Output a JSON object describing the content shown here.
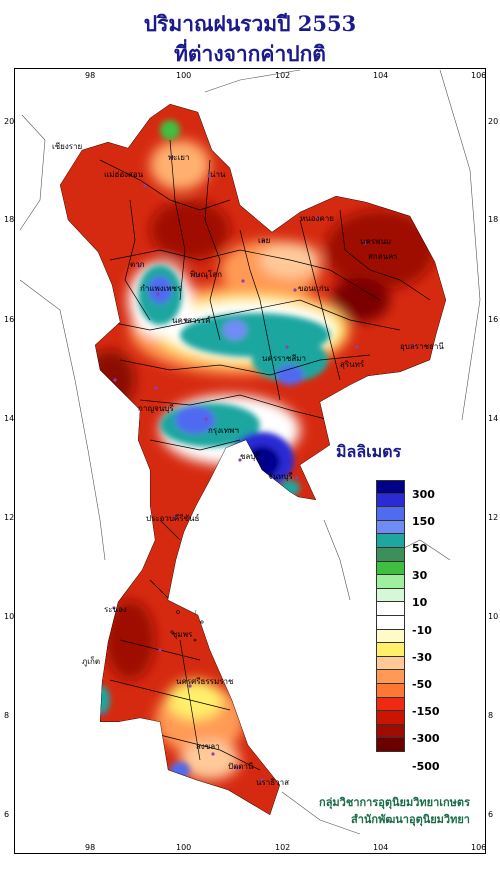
{
  "title_line1": "ปริมาณฝนรวมปี 2553",
  "title_line2": "ที่ต่างจากค่าปกติ",
  "axes": {
    "lon_ticks": [
      "98",
      "100",
      "102",
      "104",
      "106"
    ],
    "lat_ticks": [
      "20",
      "18",
      "16",
      "14",
      "12",
      "10",
      "8",
      "6"
    ]
  },
  "legend": {
    "title": "มิลลิเมตร",
    "colors": [
      "#00008b",
      "#2b2bd4",
      "#4f6bf0",
      "#6f8cf5",
      "#1fa6a0",
      "#3c8f5a",
      "#3fbf3f",
      "#9ef09e",
      "#d7f8d7",
      "#ffffff",
      "#ffffff",
      "#fffbc8",
      "#fff06a",
      "#ffc99a",
      "#ff9a55",
      "#ff7733",
      "#ee2a10",
      "#cc1500",
      "#9e0b00",
      "#6a0000"
    ],
    "labels": [
      "300",
      "150",
      "50",
      "30",
      "10",
      "-10",
      "-30",
      "-50",
      "-150",
      "-300",
      "-500"
    ]
  },
  "places": [
    {
      "name": "เชียงราย"
    },
    {
      "name": "พะเยา"
    },
    {
      "name": "แม่ฮ่องสอน"
    },
    {
      "name": "น่าน"
    },
    {
      "name": "หนองคาย"
    },
    {
      "name": "นครพนม"
    },
    {
      "name": "เลย"
    },
    {
      "name": "สกลนคร"
    },
    {
      "name": "ตาก"
    },
    {
      "name": "พิษณุโลก"
    },
    {
      "name": "ขอนแก่น"
    },
    {
      "name": "กำแพงเพชร"
    },
    {
      "name": "อุบลราชธานี"
    },
    {
      "name": "นครสวรรค์"
    },
    {
      "name": "นครราชสีมา"
    },
    {
      "name": "สุรินทร์"
    },
    {
      "name": "กาญจนบุรี"
    },
    {
      "name": "กรุงเทพฯ"
    },
    {
      "name": "ชลบุรี"
    },
    {
      "name": "จันทบุรี"
    },
    {
      "name": "ประจวบคีรีขันธ์"
    },
    {
      "name": "ระนอง"
    },
    {
      "name": "ชุมพร"
    },
    {
      "name": "นครศรีธรรมราช"
    },
    {
      "name": "ภูเก็ต"
    },
    {
      "name": "สงขลา"
    },
    {
      "name": "ปัตตานี"
    },
    {
      "name": "นราธิวาส"
    }
  ],
  "credit_line1": "กลุ่มวิชาการอุตุนิยมวิทยาเกษตร",
  "credit_line2": "สำนักพัฒนาอุตุนิยมวิทยา"
}
